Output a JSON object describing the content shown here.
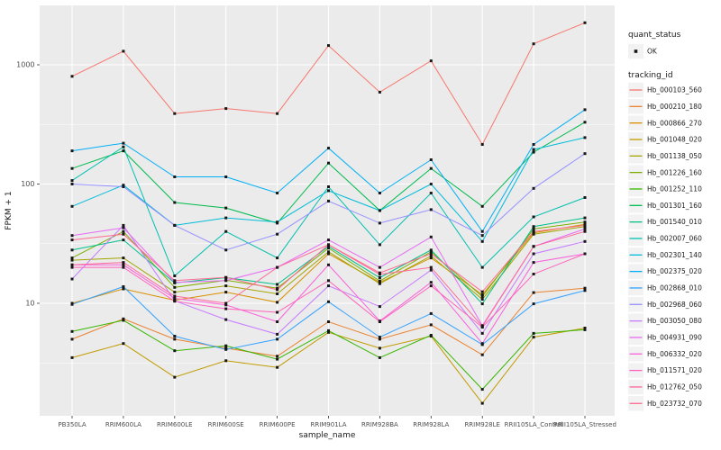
{
  "figure": {
    "background": "#FFFFFF",
    "panel_background": "#EBEBEB",
    "grid_color": "#FFFFFF",
    "legend_key_background": "#F2F2F2",
    "tick_label_color": "#4D4D4D",
    "title_color": "#1A1A1A",
    "marker_color": "#161616"
  },
  "y_axis": {
    "label": "FPKM + 1",
    "tick_labels": [
      "1000",
      "100",
      "10"
    ],
    "tick_values": [
      1000,
      100,
      10
    ]
  },
  "x_axis": {
    "label": "sample_name"
  },
  "legend": {
    "quant_title": "quant_status",
    "quant_items": [
      {
        "label": "OK",
        "marker": "point"
      }
    ],
    "series_title": "tracking_id"
  },
  "chart_data": {
    "type": "line",
    "title": "",
    "xlabel": "sample_name",
    "ylabel": "FPKM + 1",
    "yscale": "log",
    "ylim": [
      1.15,
      3200
    ],
    "grid": true,
    "legend_position": "right",
    "minor_gridlines_at": [
      3.162,
      31.62,
      316.2,
      3162
    ],
    "categories": [
      "PB350LA",
      "RRIM600LA",
      "RRIM600LE",
      "RRIM600SE",
      "RRIM600PE",
      "RRIM901LA",
      "RRIM928BA",
      "RRIM928LA",
      "RRIM928LE",
      "RRII105LA_Control",
      "RRII105LA_Stressed"
    ],
    "series": [
      {
        "name": "Hb_000103_560",
        "color": "#F8766D",
        "values": [
          800,
          1300,
          390,
          430,
          390,
          1450,
          590,
          1080,
          215,
          1500,
          2250
        ]
      },
      {
        "name": "Hb_000210_180",
        "color": "#EA8331",
        "values": [
          5.0,
          7.4,
          5.0,
          4.2,
          3.6,
          7.0,
          5.0,
          6.6,
          3.7,
          12.3,
          13.4
        ]
      },
      {
        "name": "Hb_000866_270",
        "color": "#D89000",
        "values": [
          10,
          13.2,
          10.6,
          12.4,
          10.2,
          26,
          15,
          24,
          11.8,
          39,
          46
        ]
      },
      {
        "name": "Hb_001048_020",
        "color": "#C09B00",
        "values": [
          3.5,
          4.6,
          2.4,
          3.3,
          2.9,
          5.7,
          4.2,
          5.3,
          1.45,
          5.2,
          6.2
        ]
      },
      {
        "name": "Hb_001138_050",
        "color": "#A3A500",
        "values": [
          23,
          24,
          12.4,
          14,
          12,
          27,
          14.6,
          25,
          10.8,
          38,
          44
        ]
      },
      {
        "name": "Hb_001226_160",
        "color": "#7CAE00",
        "values": [
          24,
          40,
          13.6,
          15.6,
          13.4,
          29,
          15.4,
          27,
          11.4,
          42,
          48
        ]
      },
      {
        "name": "Hb_001252_110",
        "color": "#39B600",
        "values": [
          5.8,
          7.2,
          4.0,
          4.4,
          3.4,
          5.9,
          3.5,
          5.4,
          1.9,
          5.6,
          6.0
        ]
      },
      {
        "name": "Hb_001301_160",
        "color": "#00BB4E",
        "values": [
          135,
          190,
          70,
          63,
          47,
          150,
          60,
          135,
          65,
          185,
          330
        ]
      },
      {
        "name": "Hb_001540_010",
        "color": "#00C087",
        "values": [
          28,
          34,
          14.8,
          16.4,
          14.4,
          30,
          16.4,
          28,
          9.9,
          44,
          52
        ]
      },
      {
        "name": "Hb_002007_060",
        "color": "#00C0AF",
        "values": [
          107,
          205,
          17,
          40,
          24,
          95,
          31,
          84,
          20,
          53,
          77
        ]
      },
      {
        "name": "Hb_002301_140",
        "color": "#00BCD8",
        "values": [
          65,
          98,
          45,
          52,
          48,
          88,
          60,
          100,
          33,
          195,
          245
        ]
      },
      {
        "name": "Hb_002375_020",
        "color": "#00B0F6",
        "values": [
          190,
          220,
          115,
          115,
          84,
          200,
          84,
          160,
          40,
          215,
          420
        ]
      },
      {
        "name": "Hb_002868_010",
        "color": "#35A2FF",
        "values": [
          9.8,
          13.8,
          5.3,
          4.1,
          5.0,
          10.3,
          5.2,
          8.2,
          4.5,
          9.9,
          12.8
        ]
      },
      {
        "name": "Hb_002968_060",
        "color": "#9590FF",
        "values": [
          100,
          95,
          45,
          28,
          38,
          72,
          47,
          61,
          37,
          92,
          180
        ]
      },
      {
        "name": "Hb_003050_080",
        "color": "#C77CFF",
        "values": [
          16,
          45,
          10.5,
          7.3,
          5.5,
          14,
          9.4,
          19,
          5.6,
          26,
          33
        ]
      },
      {
        "name": "Hb_004931_090",
        "color": "#E76BF3",
        "values": [
          37,
          43,
          15,
          15.5,
          20,
          34,
          20,
          36,
          6.5,
          30,
          42
        ]
      },
      {
        "name": "Hb_006332_020",
        "color": "#FA62DB",
        "values": [
          21,
          21,
          11,
          9.7,
          7.0,
          21,
          7.1,
          15,
          4.6,
          22,
          26
        ]
      },
      {
        "name": "Hb_011571_020",
        "color": "#FF62BC",
        "values": [
          20,
          20,
          10.4,
          9.0,
          8.4,
          15.5,
          7.0,
          14,
          6.3,
          17.6,
          26
        ]
      },
      {
        "name": "Hb_012762_050",
        "color": "#FF6A98",
        "values": [
          21,
          22,
          11.5,
          10,
          20,
          31,
          17.5,
          20,
          6.4,
          30,
          40
        ]
      },
      {
        "name": "Hb_023732_070",
        "color": "#FF6C91",
        "values": [
          34,
          38,
          15.5,
          16.5,
          13,
          31,
          18,
          26,
          12.5,
          40,
          45
        ]
      }
    ]
  }
}
